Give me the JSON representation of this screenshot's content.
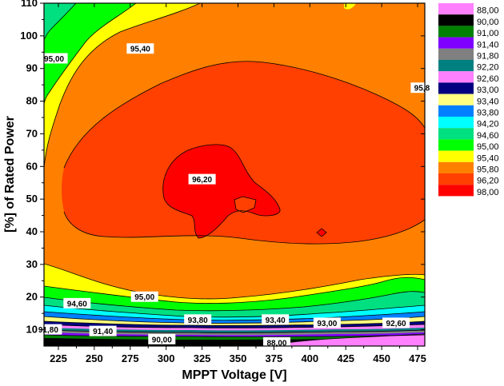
{
  "chart_data": {
    "type": "contour",
    "title": "",
    "xlabel": "MPPT Voltage [V]",
    "ylabel": "[%] of Rated Power",
    "xlim": [
      215,
      480
    ],
    "ylim": [
      5,
      110
    ],
    "x_ticks": [
      "225",
      "250",
      "275",
      "300",
      "325",
      "350",
      "375",
      "400",
      "425",
      "450",
      "475"
    ],
    "y_ticks": [
      "10",
      "20",
      "30",
      "40",
      "50",
      "60",
      "70",
      "80",
      "90",
      "100",
      "110"
    ],
    "legend": [
      {
        "label": "88,00",
        "color": "#ff80ff"
      },
      {
        "label": "90,00",
        "color": "#000000"
      },
      {
        "label": "91,00",
        "color": "#008000"
      },
      {
        "label": "91,40",
        "color": "#8000ff"
      },
      {
        "label": "91,80",
        "color": "#808080"
      },
      {
        "label": "92,20",
        "color": "#008080"
      },
      {
        "label": "92,60",
        "color": "#ff80ff"
      },
      {
        "label": "93,00",
        "color": "#000080"
      },
      {
        "label": "93,40",
        "color": "#ffff80"
      },
      {
        "label": "93,80",
        "color": "#0080ff"
      },
      {
        "label": "94,20",
        "color": "#00ffff"
      },
      {
        "label": "94,60",
        "color": "#00e080"
      },
      {
        "label": "95,00",
        "color": "#00ff00"
      },
      {
        "label": "95,40",
        "color": "#ffff00"
      },
      {
        "label": "95,80",
        "color": "#ff8000"
      },
      {
        "label": "96,20",
        "color": "#ff4000"
      },
      {
        "label": "98,00",
        "color": "#ff0000"
      }
    ],
    "contour_labels": [
      {
        "text": "95,40",
        "x": 282,
        "y": 96
      },
      {
        "text": "95,00",
        "x": 222,
        "y": 93
      },
      {
        "text": "95,8",
        "x": 478,
        "y": 84
      },
      {
        "text": "96,20",
        "x": 325,
        "y": 56
      },
      {
        "text": "94,60",
        "x": 238,
        "y": 18
      },
      {
        "text": "95,00",
        "x": 285,
        "y": 20
      },
      {
        "text": "93,80",
        "x": 322,
        "y": 13
      },
      {
        "text": "93,40",
        "x": 376,
        "y": 13
      },
      {
        "text": "93,00",
        "x": 412,
        "y": 12
      },
      {
        "text": "92,60",
        "x": 460,
        "y": 12
      },
      {
        "text": "91,80",
        "x": 218,
        "y": 10
      },
      {
        "text": "91,40",
        "x": 256,
        "y": 9.5
      },
      {
        "text": "90,00",
        "x": 297,
        "y": 7
      },
      {
        "text": "88,00",
        "x": 377,
        "y": 6
      }
    ],
    "grid": false,
    "legend_position": "right"
  }
}
